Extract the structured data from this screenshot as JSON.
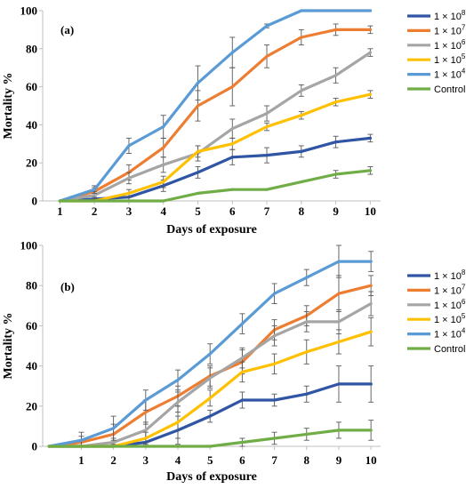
{
  "chart_data": [
    {
      "type": "line",
      "panel_label": "(a)",
      "xlabel": "Days of exposure",
      "ylabel": "Mortality %",
      "ylim": [
        0,
        100
      ],
      "yticks": [
        "0",
        "20",
        "40",
        "60",
        "80",
        "100"
      ],
      "x": [
        1,
        2,
        3,
        4,
        5,
        6,
        7,
        8,
        9,
        10
      ],
      "xticks": [
        "1",
        "2",
        "3",
        "4",
        "5",
        "6",
        "7",
        "8",
        "9",
        "10"
      ],
      "grid": false,
      "legend_position": "right",
      "series": [
        {
          "name": "1 × 10",
          "sup": "8",
          "color": "#2f55a4",
          "values": [
            0,
            1,
            2,
            8,
            15,
            23,
            24,
            26,
            31,
            33
          ],
          "errors": [
            0,
            1,
            2,
            3,
            3,
            4,
            4,
            3,
            3,
            2
          ]
        },
        {
          "name": "1 × 10",
          "sup": "7",
          "color": "#ed7d31",
          "values": [
            0,
            5,
            15,
            28,
            50,
            60,
            76,
            86,
            90,
            90
          ],
          "errors": [
            0,
            2,
            4,
            5,
            8,
            10,
            6,
            4,
            3,
            2
          ]
        },
        {
          "name": "1 × 10",
          "sup": "6",
          "color": "#a5a5a5",
          "values": [
            0,
            3,
            12,
            19,
            25,
            38,
            46,
            58,
            66,
            78
          ],
          "errors": [
            0,
            2,
            3,
            4,
            4,
            5,
            4,
            3,
            4,
            2
          ]
        },
        {
          "name": "1 × 10",
          "sup": "5",
          "color": "#ffc000",
          "values": [
            0,
            0,
            4,
            10,
            26,
            30,
            39,
            45,
            52,
            56
          ],
          "errors": [
            0,
            0,
            2,
            3,
            3,
            3,
            2,
            2,
            2,
            2
          ]
        },
        {
          "name": "1 × 10",
          "sup": "4",
          "color": "#5b9bd5",
          "values": [
            0,
            6,
            29,
            39,
            62,
            78,
            92,
            100,
            100,
            100
          ],
          "errors": [
            0,
            2,
            4,
            6,
            9,
            8,
            1,
            0,
            0,
            0
          ]
        },
        {
          "name": "Control",
          "sup": "",
          "color": "#70ad47",
          "values": [
            0,
            0,
            0,
            0,
            4,
            6,
            6,
            10,
            14,
            16
          ],
          "errors": [
            0,
            0,
            0,
            0,
            0,
            0,
            0,
            0,
            2,
            2
          ]
        }
      ]
    },
    {
      "type": "line",
      "panel_label": "(b)",
      "xlabel": "Days of exposure",
      "ylabel": "Mortality %",
      "ylim": [
        0,
        100
      ],
      "yticks": [
        "0",
        "20",
        "40",
        "60",
        "80",
        "100"
      ],
      "x": [
        0,
        1,
        2,
        3,
        4,
        5,
        6,
        7,
        8,
        9,
        10
      ],
      "xticks": [
        "1",
        "2",
        "3",
        "4",
        "5",
        "6",
        "7",
        "8",
        "9",
        "10"
      ],
      "xtick_values": [
        1,
        2,
        3,
        4,
        5,
        6,
        7,
        8,
        9,
        10
      ],
      "grid": false,
      "legend_position": "right",
      "series": [
        {
          "name": "1 × 10",
          "sup": "8",
          "color": "#2f55a4",
          "values": [
            0,
            0,
            0,
            2,
            8,
            15,
            23,
            23,
            26,
            31,
            31
          ],
          "errors": [
            0,
            0,
            0,
            2,
            7,
            3,
            4,
            3,
            4,
            9,
            9
          ]
        },
        {
          "name": "1 × 10",
          "sup": "7",
          "color": "#ed7d31",
          "values": [
            0,
            2,
            6,
            17,
            25,
            35,
            42,
            58,
            65,
            76,
            80
          ],
          "errors": [
            0,
            3,
            5,
            6,
            5,
            5,
            6,
            5,
            5,
            9,
            5
          ]
        },
        {
          "name": "1 × 10",
          "sup": "6",
          "color": "#a5a5a5",
          "values": [
            0,
            0,
            2,
            8,
            22,
            34,
            44,
            55,
            62,
            62,
            71
          ],
          "errors": [
            0,
            0,
            2,
            4,
            5,
            5,
            5,
            5,
            5,
            6,
            6
          ]
        },
        {
          "name": "1 × 10",
          "sup": "5",
          "color": "#ffc000",
          "values": [
            0,
            0,
            0,
            4,
            12,
            24,
            37,
            41,
            47,
            52,
            57
          ],
          "errors": [
            0,
            0,
            0,
            3,
            8,
            4,
            5,
            5,
            6,
            6,
            7
          ]
        },
        {
          "name": "1 × 10",
          "sup": "4",
          "color": "#5b9bd5",
          "values": [
            0,
            3,
            9,
            23,
            33,
            46,
            61,
            76,
            84,
            92,
            92
          ],
          "errors": [
            0,
            4,
            6,
            5,
            5,
            5,
            5,
            5,
            4,
            8,
            5
          ]
        },
        {
          "name": "Control",
          "sup": "",
          "color": "#70ad47",
          "values": [
            0,
            0,
            0,
            0,
            0,
            0,
            2,
            4,
            6,
            8,
            8
          ],
          "errors": [
            0,
            0,
            0,
            0,
            0,
            0,
            2,
            3,
            3,
            4,
            5
          ]
        }
      ]
    }
  ]
}
